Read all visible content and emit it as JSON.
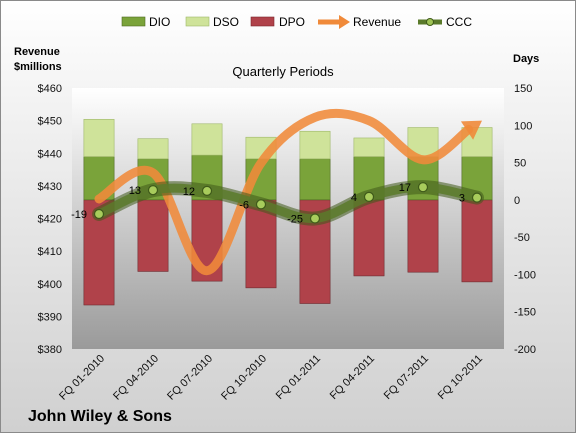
{
  "chart_data": {
    "type": "bar",
    "title": "Quarterly Periods",
    "company": "John Wiley & Sons",
    "left_axis_label": [
      "Revenue",
      "$millions"
    ],
    "right_axis_label": "Days",
    "categories": [
      "FQ 01-2010",
      "FQ 04-2010",
      "FQ 07-2010",
      "FQ 10-2010",
      "FQ 01-2011",
      "FQ 04-2011",
      "FQ 07-2011",
      "FQ 10-2011"
    ],
    "left_axis": {
      "min": 380,
      "max": 460,
      "step": 10,
      "format": "$"
    },
    "right_axis": {
      "min": -200,
      "max": 150,
      "step": 50
    },
    "legend_position": "top",
    "series": [
      {
        "name": "DIO",
        "kind": "bar",
        "axis": "right",
        "color": "#7aa33a",
        "values": [
          58,
          55,
          60,
          55,
          55,
          58,
          58,
          58
        ]
      },
      {
        "name": "DSO",
        "kind": "bar",
        "axis": "right",
        "color": "#cfe39a",
        "values": [
          50,
          27,
          42,
          29,
          37,
          25,
          39,
          39
        ]
      },
      {
        "name": "DPO",
        "kind": "bar",
        "axis": "right",
        "color": "#b0424a",
        "values": [
          -141,
          -96,
          -109,
          -118,
          -139,
          -102,
          -97,
          -110
        ]
      },
      {
        "name": "Revenue",
        "kind": "line",
        "axis": "left",
        "color": "#f08a3a",
        "values": [
          426,
          434,
          404,
          437,
          451,
          450,
          438,
          449
        ]
      },
      {
        "name": "CCC",
        "kind": "line",
        "axis": "right",
        "color": "#5a7a2a",
        "values": [
          -19,
          13,
          12,
          -6,
          -25,
          4,
          17,
          3
        ]
      }
    ],
    "ccc_labels": [
      "-19",
      "13",
      "12",
      "-6",
      "-25",
      "4",
      "17",
      "3"
    ]
  }
}
